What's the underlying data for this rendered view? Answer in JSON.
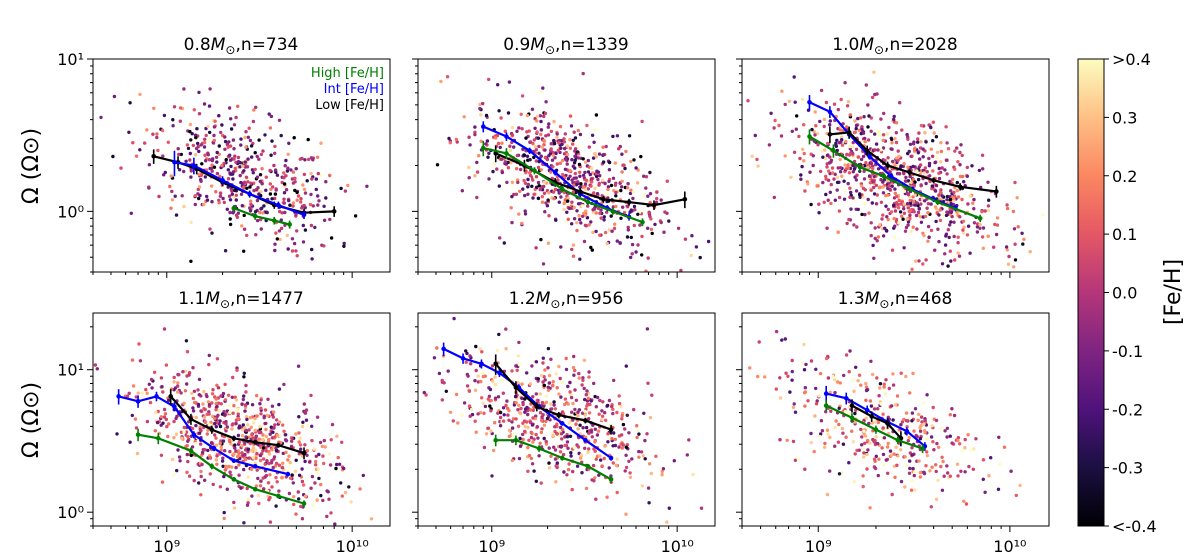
{
  "chart_data": [
    {
      "type": "scatter",
      "title": "0.8M⊙,n=734",
      "ylabel": "Ω (Ω⊙)",
      "xscale": "log",
      "yscale": "log",
      "xlim": [
        400000000,
        16000000000
      ],
      "ylim": [
        0.4,
        10
      ],
      "yticks": [
        {
          "v": 1,
          "label": "10⁰"
        },
        {
          "v": 10,
          "label": "10¹"
        }
      ],
      "xticks": [],
      "legend": {
        "placement": "top-right",
        "entries": [
          {
            "name": "High [Fe/H]",
            "color": "#008000"
          },
          {
            "name": "Int [Fe/H]",
            "color": "#0000ff"
          },
          {
            "name": "Low [Fe/H]",
            "color": "#000000"
          }
        ]
      },
      "scatter_cloud": {
        "n_points_shown": 500,
        "x_center": 2500000000,
        "y_center": 1.7,
        "fe_h_mean": -0.05
      },
      "series": [
        {
          "name": "Low [Fe/H]",
          "color": "#000000",
          "x": [
            850000000,
            1150000000,
            1450000000,
            2000000000,
            2800000000,
            3800000000,
            5500000000,
            8000000000
          ],
          "y": [
            2.3,
            2.1,
            1.9,
            1.55,
            1.3,
            1.1,
            0.98,
            1.0
          ],
          "err": [
            0.25,
            0.2,
            0.15,
            0.08,
            0.06,
            0.06,
            0.06,
            0.08
          ]
        },
        {
          "name": "Int [Fe/H]",
          "color": "#0000ff",
          "x": [
            1100000000,
            1400000000,
            2000000000,
            2800000000,
            4000000000,
            5500000000
          ],
          "y": [
            2.1,
            2.0,
            1.6,
            1.3,
            1.1,
            0.95
          ],
          "err": [
            0.4,
            0.25,
            0.1,
            0.07,
            0.06,
            0.06
          ]
        },
        {
          "name": "High [Fe/H]",
          "color": "#008000",
          "x": [
            2300000000,
            3000000000,
            3800000000,
            4600000000
          ],
          "y": [
            1.05,
            0.93,
            0.87,
            0.82
          ],
          "err": [
            0.05,
            0.05,
            0.05,
            0.05
          ]
        }
      ]
    },
    {
      "type": "scatter",
      "title": "0.9M⊙,n=1339",
      "xscale": "log",
      "yscale": "log",
      "xlim": [
        400000000,
        16000000000
      ],
      "ylim": [
        0.4,
        10
      ],
      "yticks": [],
      "xticks": [],
      "scatter_cloud": {
        "n_points_shown": 700,
        "x_center": 2500000000,
        "y_center": 1.7,
        "fe_h_mean": -0.02
      },
      "series": [
        {
          "name": "Int [Fe/H]",
          "color": "#0000ff",
          "x": [
            900000000,
            1200000000,
            1600000000,
            2200000000,
            3000000000,
            4200000000,
            5500000000
          ],
          "y": [
            3.6,
            3.1,
            2.5,
            1.8,
            1.3,
            1.05,
            0.92
          ],
          "err": [
            0.3,
            0.2,
            0.12,
            0.08,
            0.06,
            0.05,
            0.05
          ]
        },
        {
          "name": "Low [Fe/H]",
          "color": "#000000",
          "x": [
            1050000000,
            1500000000,
            2200000000,
            3000000000,
            4000000000,
            5500000000,
            7500000000,
            11000000000
          ],
          "y": [
            2.4,
            2.0,
            1.55,
            1.35,
            1.2,
            1.15,
            1.1,
            1.2
          ],
          "err": [
            0.3,
            0.18,
            0.1,
            0.07,
            0.06,
            0.06,
            0.08,
            0.15
          ]
        },
        {
          "name": "High [Fe/H]",
          "color": "#008000",
          "x": [
            900000000,
            1200000000,
            1700000000,
            2400000000,
            3300000000,
            4500000000,
            6500000000
          ],
          "y": [
            2.6,
            2.4,
            1.85,
            1.4,
            1.15,
            1.0,
            0.85
          ],
          "err": [
            0.3,
            0.2,
            0.1,
            0.07,
            0.05,
            0.05,
            0.05
          ]
        }
      ]
    },
    {
      "type": "scatter",
      "title": "1.0M⊙,n=2028",
      "xscale": "log",
      "yscale": "log",
      "xlim": [
        400000000,
        16000000000
      ],
      "ylim": [
        0.4,
        10
      ],
      "yticks": [],
      "xticks": [],
      "scatter_cloud": {
        "n_points_shown": 900,
        "x_center": 2500000000,
        "y_center": 1.6,
        "fe_h_mean": 0.02
      },
      "series": [
        {
          "name": "Int [Fe/H]",
          "color": "#0000ff",
          "x": [
            900000000,
            1150000000,
            1450000000,
            1850000000,
            2400000000,
            3100000000,
            4000000000,
            5200000000
          ],
          "y": [
            5.2,
            4.5,
            3.2,
            2.3,
            1.7,
            1.4,
            1.2,
            1.05
          ],
          "err": [
            0.6,
            0.4,
            0.2,
            0.1,
            0.07,
            0.05,
            0.05,
            0.05
          ]
        },
        {
          "name": "Low [Fe/H]",
          "color": "#000000",
          "x": [
            1150000000,
            1450000000,
            1800000000,
            2300000000,
            3000000000,
            4000000000,
            5500000000,
            8500000000
          ],
          "y": [
            3.2,
            3.3,
            2.5,
            2.0,
            1.8,
            1.6,
            1.45,
            1.35
          ],
          "err": [
            0.4,
            0.3,
            0.2,
            0.12,
            0.08,
            0.07,
            0.08,
            0.12
          ]
        },
        {
          "name": "High [Fe/H]",
          "color": "#008000",
          "x": [
            900000000,
            1200000000,
            1650000000,
            2200000000,
            3000000000,
            4200000000,
            7000000000
          ],
          "y": [
            3.1,
            2.5,
            1.95,
            1.7,
            1.4,
            1.15,
            0.9
          ],
          "err": [
            0.35,
            0.25,
            0.12,
            0.08,
            0.05,
            0.05,
            0.05
          ]
        }
      ]
    },
    {
      "type": "scatter",
      "title": "1.1M⊙,n=1477",
      "ylabel": "Ω (Ω⊙)",
      "xscale": "log",
      "yscale": "log",
      "xlim": [
        400000000,
        16000000000
      ],
      "ylim": [
        0.8,
        25
      ],
      "yticks": [
        {
          "v": 1,
          "label": "10⁰"
        },
        {
          "v": 10,
          "label": "10¹"
        }
      ],
      "xticks": [
        {
          "v": 1000000000,
          "label": "10⁹"
        },
        {
          "v": 10000000000,
          "label": "10¹⁰"
        }
      ],
      "scatter_cloud": {
        "n_points_shown": 750,
        "x_center": 2500000000,
        "y_center": 3.2,
        "fe_h_mean": 0.05
      },
      "series": [
        {
          "name": "Int [Fe/H]",
          "color": "#0000ff",
          "x": [
            550000000,
            700000000,
            880000000,
            1100000000,
            1400000000,
            1800000000,
            2300000000,
            3000000000,
            4500000000
          ],
          "y": [
            6.5,
            6.0,
            6.5,
            5.5,
            3.5,
            2.8,
            2.3,
            2.1,
            1.85
          ],
          "err": [
            0.8,
            0.6,
            0.5,
            0.4,
            0.2,
            0.12,
            0.08,
            0.07,
            0.07
          ]
        },
        {
          "name": "Low [Fe/H]",
          "color": "#000000",
          "x": [
            1050000000,
            1350000000,
            1750000000,
            2300000000,
            3000000000,
            4000000000,
            5500000000
          ],
          "y": [
            6.5,
            4.5,
            3.8,
            3.3,
            3.1,
            2.95,
            2.6
          ],
          "err": [
            0.8,
            0.4,
            0.25,
            0.15,
            0.12,
            0.12,
            0.25
          ]
        },
        {
          "name": "High [Fe/H]",
          "color": "#008000",
          "x": [
            700000000,
            900000000,
            1350000000,
            1750000000,
            2300000000,
            3000000000,
            4000000000,
            5500000000
          ],
          "y": [
            3.5,
            3.3,
            2.7,
            2.1,
            1.7,
            1.45,
            1.3,
            1.15
          ],
          "err": [
            0.35,
            0.3,
            0.15,
            0.1,
            0.06,
            0.05,
            0.05,
            0.06
          ]
        }
      ]
    },
    {
      "type": "scatter",
      "title": "1.2M⊙,n=956",
      "xscale": "log",
      "yscale": "log",
      "xlim": [
        400000000,
        16000000000
      ],
      "ylim": [
        0.8,
        25
      ],
      "yticks": [],
      "xticks": [
        {
          "v": 1000000000,
          "label": "10⁹"
        },
        {
          "v": 10000000000,
          "label": "10¹⁰"
        }
      ],
      "scatter_cloud": {
        "n_points_shown": 600,
        "x_center": 2200000000,
        "y_center": 4.5,
        "fe_h_mean": 0.05
      },
      "series": [
        {
          "name": "Int [Fe/H]",
          "color": "#0000ff",
          "x": [
            550000000,
            700000000,
            880000000,
            1100000000,
            1400000000,
            1800000000,
            2400000000,
            3200000000,
            4400000000
          ],
          "y": [
            14,
            12,
            11,
            9.5,
            7.5,
            5.5,
            4.2,
            3.2,
            2.4
          ],
          "err": [
            1.5,
            1.0,
            0.8,
            0.6,
            0.4,
            0.25,
            0.15,
            0.1,
            0.1
          ]
        },
        {
          "name": "Low [Fe/H]",
          "color": "#000000",
          "x": [
            1050000000,
            1350000000,
            1750000000,
            2300000000,
            3200000000,
            4400000000
          ],
          "y": [
            11,
            7.5,
            5.5,
            4.8,
            4.4,
            3.8
          ],
          "err": [
            1.8,
            0.8,
            0.4,
            0.25,
            0.2,
            0.3
          ]
        },
        {
          "name": "High [Fe/H]",
          "color": "#008000",
          "x": [
            1050000000,
            1350000000,
            1800000000,
            2400000000,
            3300000000,
            4400000000
          ],
          "y": [
            3.2,
            3.2,
            2.8,
            2.4,
            2.1,
            1.7
          ],
          "err": [
            0.3,
            0.25,
            0.15,
            0.1,
            0.08,
            0.1
          ]
        }
      ]
    },
    {
      "type": "scatter",
      "title": "1.3M⊙,n=468",
      "xscale": "log",
      "yscale": "log",
      "xlim": [
        400000000,
        16000000000
      ],
      "ylim": [
        0.8,
        25
      ],
      "yticks": [],
      "xticks": [
        {
          "v": 1000000000,
          "label": "10⁹"
        },
        {
          "v": 10000000000,
          "label": "10¹⁰"
        }
      ],
      "scatter_cloud": {
        "n_points_shown": 400,
        "x_center": 2100000000,
        "y_center": 4.0,
        "fe_h_mean": 0.1
      },
      "series": [
        {
          "name": "Int [Fe/H]",
          "color": "#0000ff",
          "x": [
            1100000000,
            1400000000,
            1800000000,
            2300000000,
            2900000000,
            3600000000
          ],
          "y": [
            6.8,
            6.3,
            5.2,
            4.3,
            3.7,
            2.9
          ],
          "err": [
            0.9,
            0.6,
            0.4,
            0.3,
            0.25,
            0.2
          ]
        },
        {
          "name": "Low [Fe/H]",
          "color": "#000000",
          "x": [
            1500000000,
            1900000000,
            2300000000,
            2700000000
          ],
          "y": [
            5.6,
            4.7,
            4.2,
            3.3
          ],
          "err": [
            0.6,
            0.4,
            0.35,
            0.4
          ]
        },
        {
          "name": "High [Fe/H]",
          "color": "#008000",
          "x": [
            1100000000,
            1500000000,
            2000000000,
            2600000000,
            3500000000
          ],
          "y": [
            5.6,
            4.6,
            3.8,
            3.2,
            2.8
          ],
          "err": [
            0.5,
            0.35,
            0.25,
            0.2,
            0.2
          ]
        }
      ]
    }
  ],
  "colorbar": {
    "label": "[Fe/H]",
    "colormap": "magma",
    "range": [
      -0.4,
      0.4
    ],
    "ticks": [
      {
        "v": 0.4,
        "label": ">0.4"
      },
      {
        "v": 0.3,
        "label": "0.3"
      },
      {
        "v": 0.2,
        "label": "0.2"
      },
      {
        "v": 0.1,
        "label": "0.1"
      },
      {
        "v": 0.0,
        "label": "0.0"
      },
      {
        "v": -0.1,
        "label": "-0.1"
      },
      {
        "v": -0.2,
        "label": "-0.2"
      },
      {
        "v": -0.3,
        "label": "-0.3"
      },
      {
        "v": -0.4,
        "label": "<-0.4"
      }
    ]
  }
}
